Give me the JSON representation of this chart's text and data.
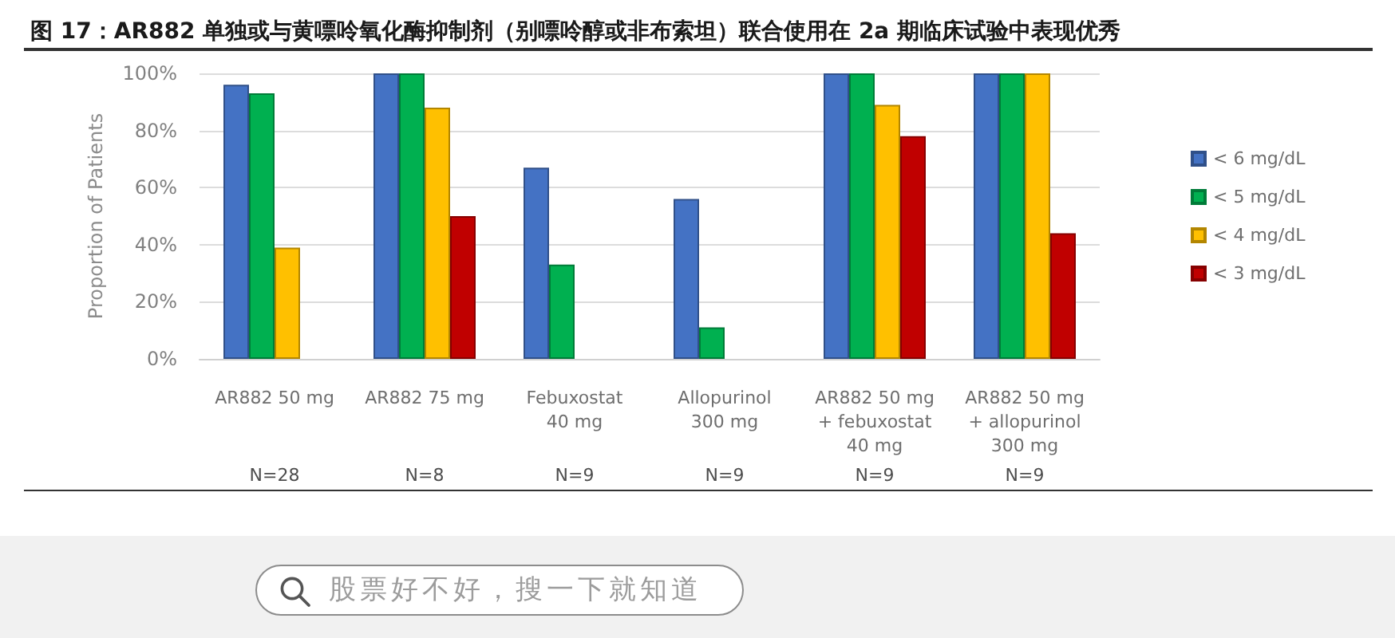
{
  "chart_data": {
    "type": "bar",
    "title": "图 17：AR882 单独或与黄嘌呤氧化酶抑制剂（别嘌呤醇或非布索坦）联合使用在 2a 期临床试验中表现优秀",
    "ylabel": "Proportion of Patients",
    "categories": [
      "AR882 50 mg",
      "AR882 75 mg",
      "Febuxostat\n40 mg",
      "Allopurinol\n300 mg",
      "AR882 50 mg\n+ febuxostat\n40 mg",
      "AR882 50 mg\n+ allopurinol\n300 mg"
    ],
    "series": [
      {
        "name": "< 6 mg/dL",
        "color": "#4472c4",
        "values": [
          96,
          100,
          67,
          56,
          100,
          100
        ]
      },
      {
        "name": "< 5 mg/dL",
        "color": "#00b050",
        "values": [
          93,
          100,
          33,
          11,
          100,
          100
        ]
      },
      {
        "name": "< 4 mg/dL",
        "color": "#ffc000",
        "values": [
          39,
          88,
          null,
          null,
          89,
          100
        ]
      },
      {
        "name": "< 3 mg/dL",
        "color": "#c00000",
        "values": [
          null,
          50,
          null,
          null,
          78,
          44
        ]
      }
    ],
    "ylim": [
      0,
      100
    ],
    "yticks": [
      {
        "value": 0,
        "label": "0%"
      },
      {
        "value": 20,
        "label": "20%"
      },
      {
        "value": 40,
        "label": "40%"
      },
      {
        "value": 60,
        "label": "60%"
      },
      {
        "value": 80,
        "label": "80%"
      },
      {
        "value": 100,
        "label": "100%"
      }
    ],
    "grid": "y",
    "legend": "right",
    "annotations": [
      "N=28",
      "N=8",
      "N=9",
      "N=9",
      "N=9",
      "N=9",
      "股票好不好，搜一下就知道"
    ]
  }
}
